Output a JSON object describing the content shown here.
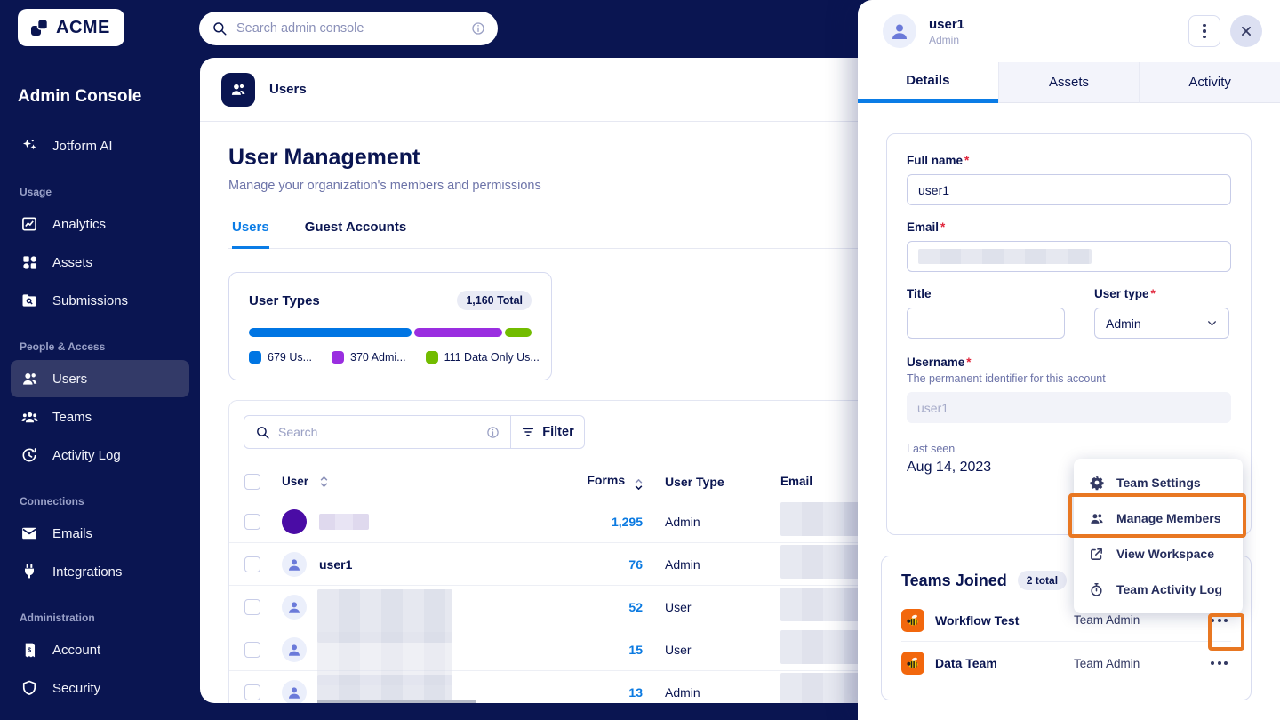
{
  "colors": {
    "navy": "#0A1551",
    "accent_blue": "#0A7CE6",
    "link_blue": "#0B7AE1",
    "highlight_orange": "#E87722",
    "muted_text": "#6C73A8"
  },
  "topbar": {
    "search_placeholder": "Search admin console"
  },
  "sidebar": {
    "logo_text": "ACME",
    "title": "Admin Console",
    "ai_label": "Jotform AI",
    "sections": [
      {
        "label": "Usage",
        "items": [
          {
            "label": "Analytics"
          },
          {
            "label": "Assets"
          },
          {
            "label": "Submissions"
          }
        ]
      },
      {
        "label": "People & Access",
        "items": [
          {
            "label": "Users"
          },
          {
            "label": "Teams"
          },
          {
            "label": "Activity Log"
          }
        ]
      },
      {
        "label": "Connections",
        "items": [
          {
            "label": "Emails"
          },
          {
            "label": "Integrations"
          }
        ]
      },
      {
        "label": "Administration",
        "items": [
          {
            "label": "Account"
          },
          {
            "label": "Security"
          }
        ]
      }
    ]
  },
  "main": {
    "breadcrumb": "Users",
    "title": "User Management",
    "subtitle": "Manage your organization's members and permissions",
    "tabs": [
      {
        "label": "Users"
      },
      {
        "label": "Guest Accounts"
      }
    ],
    "user_types": {
      "title": "User Types",
      "total_badge": "1,160 Total",
      "segments": [
        {
          "label": "679 Us...",
          "value": 679,
          "color": "#0075E3"
        },
        {
          "label": "370 Admi...",
          "value": 370,
          "color": "#9A2EE0"
        },
        {
          "label": "111 Data Only Us...",
          "value": 111,
          "color": "#72BC00"
        }
      ]
    },
    "table": {
      "search_placeholder": "Search",
      "filter_label": "Filter",
      "columns": {
        "user": "User",
        "forms": "Forms",
        "type": "User Type",
        "email": "Email"
      },
      "rows": [
        {
          "forms": "1,295",
          "type": "Admin"
        },
        {
          "name": "user1",
          "forms": "76",
          "type": "Admin"
        },
        {
          "forms": "52",
          "type": "User"
        },
        {
          "forms": "15",
          "type": "User"
        },
        {
          "forms": "13",
          "type": "Admin"
        }
      ]
    }
  },
  "drawer": {
    "user_name": "user1",
    "user_role": "Admin",
    "tabs": [
      {
        "label": "Details"
      },
      {
        "label": "Assets"
      },
      {
        "label": "Activity"
      }
    ],
    "form": {
      "required_mark": "*",
      "full_name_label": "Full name",
      "full_name_value": "user1",
      "email_label": "Email",
      "title_label": "Title",
      "user_type_label": "User type",
      "user_type_value": "Admin",
      "username_label": "Username",
      "username_hint": "The permanent identifier for this account",
      "username_value": "user1",
      "last_seen_label": "Last seen",
      "last_seen_value": "Aug 14, 2023"
    },
    "teams": {
      "title": "Teams Joined",
      "badge": "2 total",
      "rows": [
        {
          "name": "Workflow Test",
          "role": "Team Admin"
        },
        {
          "name": "Data Team",
          "role": "Team Admin"
        }
      ]
    },
    "menu": {
      "items": [
        {
          "label": "Team Settings"
        },
        {
          "label": "Manage Members"
        },
        {
          "label": "View Workspace"
        },
        {
          "label": "Team Activity Log"
        }
      ]
    }
  }
}
